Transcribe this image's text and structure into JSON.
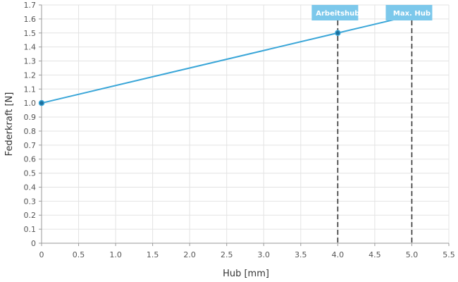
{
  "chart_data": {
    "type": "line",
    "xlabel": "Hub [mm]",
    "ylabel": "Federkraft [N]",
    "xlim": [
      0,
      5.5
    ],
    "ylim": [
      0,
      1.7
    ],
    "x_ticks": [
      0,
      0.5,
      1.0,
      1.5,
      2.0,
      2.5,
      3.0,
      3.5,
      4.0,
      4.5,
      5.0,
      5.5
    ],
    "x_tick_labels": [
      "0",
      "0.5",
      "1.0",
      "1.5",
      "2.0",
      "2.5",
      "3.0",
      "3.5",
      "4.0",
      "4.5",
      "5.0",
      "5.5"
    ],
    "y_ticks": [
      0,
      0.1,
      0.2,
      0.3,
      0.4,
      0.5,
      0.6,
      0.7,
      0.8,
      0.9,
      1.0,
      1.1,
      1.2,
      1.3,
      1.4,
      1.5,
      1.6,
      1.7
    ],
    "y_tick_labels": [
      "0",
      "0.1",
      "0.2",
      "0.3",
      "0.4",
      "0.5",
      "0.6",
      "0.7",
      "0.8",
      "0.9",
      "1.0",
      "1.1",
      "1.2",
      "1.3",
      "1.4",
      "1.5",
      "1.6",
      "1.7"
    ],
    "grid": true,
    "series": [
      {
        "x": [
          0,
          4.0,
          5.0
        ],
        "y": [
          1.0,
          1.5,
          1.625
        ],
        "color": "#3aa6d8"
      }
    ],
    "markers": [
      {
        "label": "Arbeitshub",
        "x": 4.0
      },
      {
        "label": "Max. Hub",
        "x": 5.0
      }
    ],
    "colors": {
      "line": "#3aa6d8",
      "point_fill": "#1b6e9c",
      "badge": "#7cc8eb",
      "marker_line": "#333333",
      "grid": "#e3e3e3",
      "axis": "#9a9a9a"
    }
  }
}
